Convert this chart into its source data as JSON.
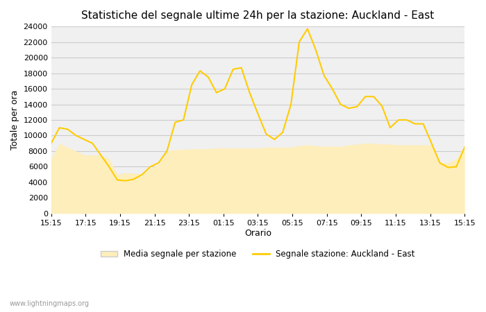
{
  "title": "Statistiche del segnale ultime 24h per la stazione: Auckland - East",
  "xlabel": "Orario",
  "ylabel": "Totale per ora",
  "watermark": "www.lightningmaps.org",
  "x_labels": [
    "15:15",
    "17:15",
    "19:15",
    "21:15",
    "23:15",
    "01:15",
    "03:15",
    "05:15",
    "07:15",
    "09:15",
    "11:15",
    "13:15",
    "15:15"
  ],
  "ylim": [
    0,
    24000
  ],
  "yticks": [
    0,
    2000,
    4000,
    6000,
    8000,
    10000,
    12000,
    14000,
    16000,
    18000,
    20000,
    22000,
    24000
  ],
  "line_color": "#FFCC00",
  "fill_color": "#FDEEBB",
  "background_color": "#F0F0F0",
  "legend_fill_label": "Media segnale per stazione",
  "legend_line_label": "Segnale stazione: Auckland - East",
  "line_y": [
    9000,
    11000,
    10800,
    10000,
    9500,
    9000,
    7500,
    6000,
    4300,
    4200,
    4400,
    5000,
    6000,
    6500,
    8000,
    11700,
    12000,
    16500,
    18300,
    17500,
    15500,
    16000,
    18500,
    18700,
    15500,
    12800,
    10200,
    9500,
    10400,
    14000,
    22000,
    23700,
    21000,
    17700,
    16000,
    14000,
    13500,
    13700,
    15000,
    15000,
    13800,
    11000,
    12000,
    12000,
    11500,
    11500,
    9000,
    6500,
    5900,
    6000,
    8500
  ],
  "fill_y": [
    7000,
    9000,
    8500,
    8000,
    7500,
    7500,
    7500,
    7000,
    5000,
    5200,
    5200,
    5000,
    5800,
    6300,
    8000,
    8200,
    8200,
    8300,
    8300,
    8300,
    8400,
    8400,
    8400,
    8400,
    8400,
    8400,
    8500,
    8500,
    8500,
    8500,
    8700,
    8800,
    8700,
    8600,
    8600,
    8600,
    8800,
    8900,
    9000,
    9000,
    8900,
    8900,
    8800,
    8800,
    8800,
    8800,
    8800,
    6500,
    6500,
    7000,
    8700
  ]
}
